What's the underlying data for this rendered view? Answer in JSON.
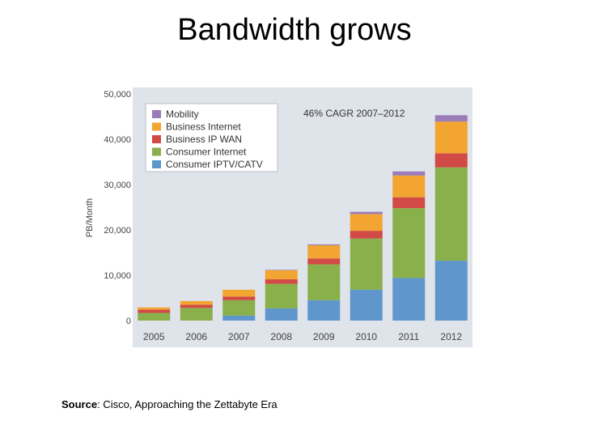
{
  "slide": {
    "title": "Bandwidth grows"
  },
  "source": {
    "label": "Source",
    "text": ": Cisco, Approaching the Zettabyte Era"
  },
  "chart_data": {
    "type": "bar",
    "stacked": true,
    "title": "",
    "xlabel": "",
    "ylabel": "PB/Month",
    "ylim": [
      0,
      50000
    ],
    "yticks": [
      0,
      10000,
      20000,
      30000,
      40000,
      50000
    ],
    "ytick_labels": [
      "0",
      "10,000",
      "20,000",
      "30,000",
      "40,000",
      "50,000"
    ],
    "grid": false,
    "legend_position": "top-left",
    "annotation": "46% CAGR 2007–2012",
    "categories": [
      "2005",
      "2006",
      "2007",
      "2008",
      "2009",
      "2010",
      "2011",
      "2012"
    ],
    "series": [
      {
        "name": "Consumer IPTV/CATV",
        "color": "#5f97cc",
        "values": [
          0,
          0,
          1100,
          2700,
          4500,
          6800,
          9400,
          13200
        ]
      },
      {
        "name": "Consumer Internet",
        "color": "#8ab04c",
        "values": [
          1700,
          2800,
          3400,
          5400,
          7900,
          11300,
          15400,
          20600
        ]
      },
      {
        "name": "Business IP WAN",
        "color": "#d24a45",
        "values": [
          700,
          700,
          800,
          1000,
          1300,
          1700,
          2400,
          3100
        ]
      },
      {
        "name": "Business Internet",
        "color": "#f2a530",
        "values": [
          500,
          800,
          1500,
          2000,
          2900,
          3700,
          4800,
          7000
        ]
      },
      {
        "name": "Mobility",
        "color": "#9b7cb8",
        "values": [
          0,
          0,
          0,
          100,
          200,
          500,
          900,
          1400
        ]
      }
    ],
    "colors": {
      "plot_background": "#dfe3ea",
      "legend_background": "#ffffff",
      "tick_text": "#444444"
    }
  }
}
